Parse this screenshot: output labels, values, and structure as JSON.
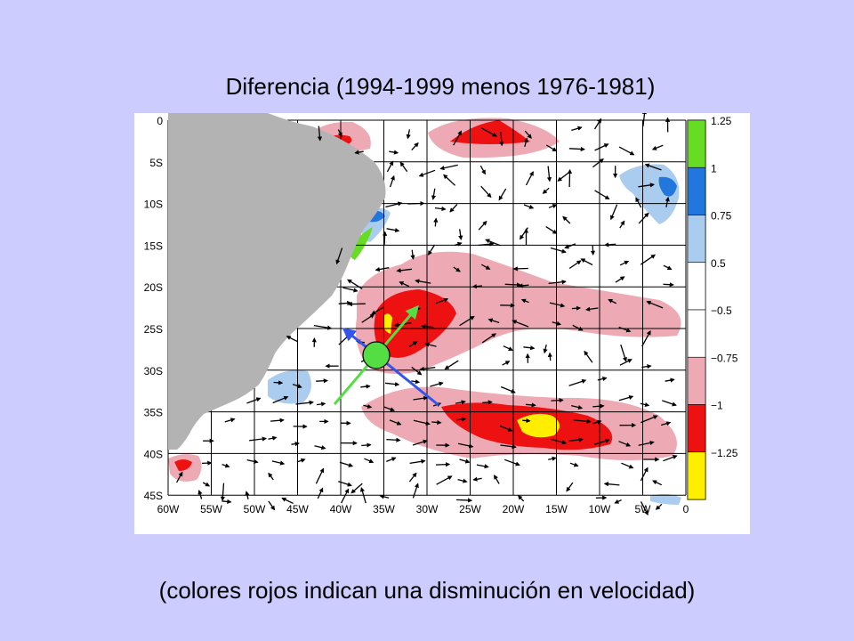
{
  "title": "Diferencia (1994-1999 menos 1976-1981)",
  "caption": "(colores rojos indican una disminución en velocidad)",
  "map": {
    "lat_labels": [
      "0",
      "5S",
      "10S",
      "15S",
      "20S",
      "25S",
      "30S",
      "35S",
      "40S",
      "45S"
    ],
    "lon_labels": [
      "60W",
      "55W",
      "50W",
      "45W",
      "40W",
      "35W",
      "30W",
      "25W",
      "20W",
      "15W",
      "10W",
      "5W",
      "0"
    ]
  },
  "colorbar": {
    "labels": [
      "1.25",
      "1",
      "0.75",
      "0.5",
      "−0.5",
      "−0.75",
      "−1",
      "−1.25"
    ],
    "colors": [
      "#66dd22",
      "#2277dd",
      "#aaccee",
      "#ffffff",
      "#ffffff",
      "#eeaab4",
      "#ee1111",
      "#ffee00"
    ]
  },
  "colors": {
    "background": "#ccccff",
    "land": "#b3b3b3",
    "positive_strong": "#66dd22",
    "positive_mid": "#2277dd",
    "positive_light": "#aaccee",
    "negative_light": "#eeaab4",
    "negative_mid": "#ee1111",
    "negative_strong": "#ffee00",
    "arrow_green": "#55dd44",
    "arrow_blue": "#3355ee"
  }
}
